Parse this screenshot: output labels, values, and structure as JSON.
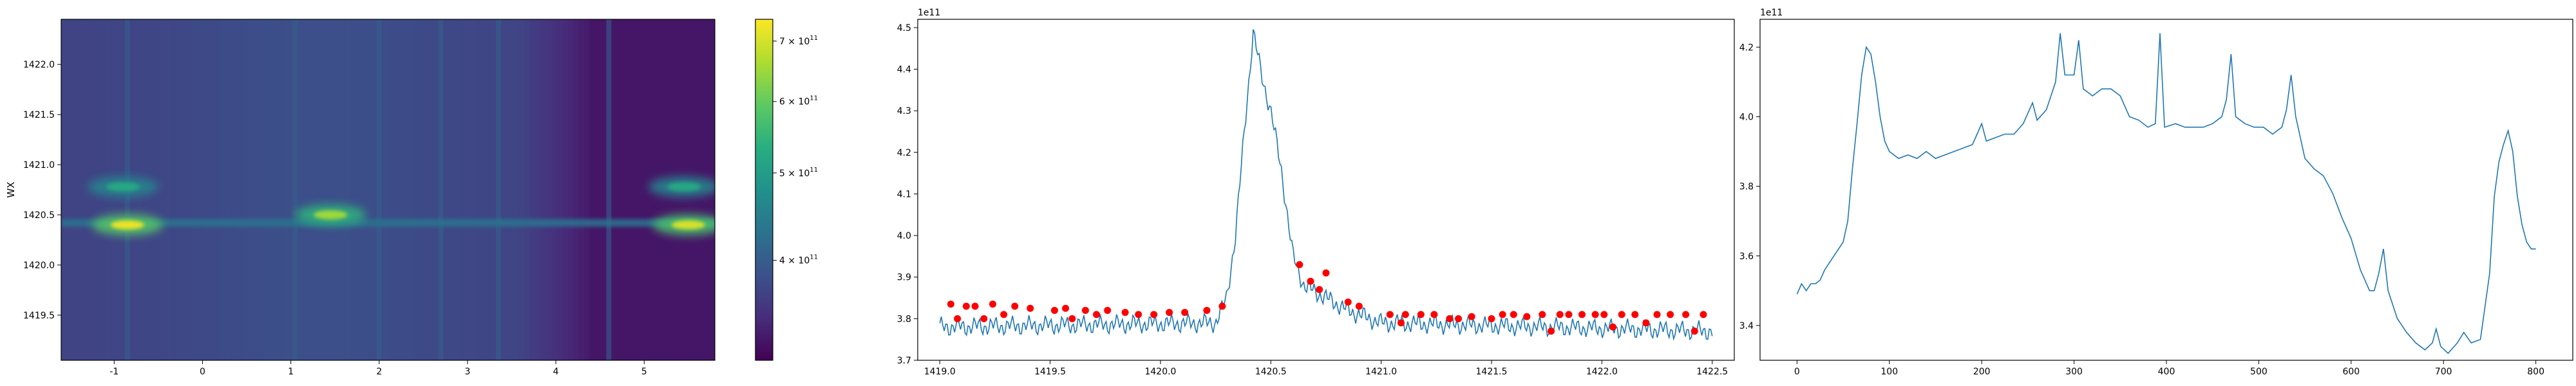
{
  "chart_data": [
    {
      "type": "heatmap",
      "title": "",
      "xlabel": "",
      "ylabel": "WX",
      "xlim": [
        -1.6,
        5.8
      ],
      "ylim": [
        1419.05,
        1422.45
      ],
      "xticks": [
        "-1",
        "0",
        "1",
        "2",
        "3",
        "4",
        "5"
      ],
      "xtick_values": [
        -1,
        0,
        1,
        2,
        3,
        4,
        5
      ],
      "yticks": [
        "1419.5",
        "1420.0",
        "1420.5",
        "1421.0",
        "1421.5",
        "1422.0"
      ],
      "ytick_values": [
        1419.5,
        1420.0,
        1420.5,
        1421.0,
        1421.5,
        1422.0
      ],
      "colormap": "viridis",
      "colorbar": {
        "scale": "log",
        "range": [
          310000000000.0,
          740000000000.0
        ],
        "ticks": [
          {
            "value": 400000000000.0,
            "mantissa": "4",
            "base": "10",
            "exp": "11"
          },
          {
            "value": 500000000000.0,
            "mantissa": "5",
            "base": "10",
            "exp": "11"
          },
          {
            "value": 600000000000.0,
            "mantissa": "6",
            "base": "10",
            "exp": "11"
          },
          {
            "value": 700000000000.0,
            "mantissa": "7",
            "base": "10",
            "exp": "11"
          }
        ]
      },
      "emission_line_center": 1420.42,
      "hot_spots": [
        {
          "x": -0.85,
          "y": 1420.4,
          "value": 720000000000.0
        },
        {
          "x": 1.45,
          "y": 1420.5,
          "value": 650000000000.0
        },
        {
          "x": 5.5,
          "y": 1420.4,
          "value": 700000000000.0
        },
        {
          "x": -0.9,
          "y": 1420.78,
          "value": 520000000000.0
        },
        {
          "x": 5.45,
          "y": 1420.78,
          "value": 520000000000.0
        }
      ],
      "vertical_stripes_x": [
        -0.85,
        1.05,
        2.0,
        2.7,
        3.35,
        4.6
      ]
    },
    {
      "type": "line",
      "title": "",
      "xlabel": "",
      "ylabel": "",
      "offset_text": "1e11",
      "xlim": [
        1418.9,
        1422.6
      ],
      "ylim": [
        3.7,
        4.52
      ],
      "xticks": [
        "1419.0",
        "1419.5",
        "1420.0",
        "1420.5",
        "1421.0",
        "1421.5",
        "1422.0",
        "1422.5"
      ],
      "xtick_values": [
        1419.0,
        1419.5,
        1420.0,
        1420.5,
        1421.0,
        1421.5,
        1422.0,
        1422.5
      ],
      "yticks": [
        "3.7",
        "3.8",
        "3.9",
        "4.0",
        "4.1",
        "4.2",
        "4.3",
        "4.4",
        "4.5"
      ],
      "ytick_values": [
        3.7,
        3.8,
        3.9,
        4.0,
        4.1,
        4.2,
        4.3,
        4.4,
        4.5
      ],
      "series": [
        {
          "line_color": "#1f77b4",
          "x_start": 1419.0,
          "x_end": 1422.5,
          "baseline": 3.78,
          "noise_amplitude": 0.025,
          "peak": {
            "x": 1420.42,
            "y": 4.49
          },
          "profile": [
            [
              1419.0,
              3.78
            ],
            [
              1420.25,
              3.79
            ],
            [
              1420.3,
              3.85
            ],
            [
              1420.34,
              4.0
            ],
            [
              1420.38,
              4.25
            ],
            [
              1420.42,
              4.49
            ],
            [
              1420.46,
              4.38
            ],
            [
              1420.5,
              4.3
            ],
            [
              1420.55,
              4.15
            ],
            [
              1420.6,
              3.95
            ],
            [
              1420.65,
              3.88
            ],
            [
              1420.75,
              3.85
            ],
            [
              1420.85,
              3.82
            ],
            [
              1421.0,
              3.79
            ],
            [
              1422.5,
              3.77
            ]
          ]
        }
      ],
      "markers": {
        "color": "#ff0000",
        "points": [
          [
            1419.05,
            3.835
          ],
          [
            1419.08,
            3.8
          ],
          [
            1419.12,
            3.83
          ],
          [
            1419.16,
            3.83
          ],
          [
            1419.2,
            3.8
          ],
          [
            1419.24,
            3.835
          ],
          [
            1419.29,
            3.81
          ],
          [
            1419.34,
            3.83
          ],
          [
            1419.41,
            3.825
          ],
          [
            1419.52,
            3.82
          ],
          [
            1419.57,
            3.825
          ],
          [
            1419.6,
            3.8
          ],
          [
            1419.66,
            3.82
          ],
          [
            1419.71,
            3.81
          ],
          [
            1419.76,
            3.82
          ],
          [
            1419.84,
            3.815
          ],
          [
            1419.9,
            3.81
          ],
          [
            1419.97,
            3.81
          ],
          [
            1420.04,
            3.815
          ],
          [
            1420.11,
            3.815
          ],
          [
            1420.21,
            3.82
          ],
          [
            1420.28,
            3.83
          ],
          [
            1420.63,
            3.93
          ],
          [
            1420.68,
            3.89
          ],
          [
            1420.72,
            3.87
          ],
          [
            1420.75,
            3.91
          ],
          [
            1420.85,
            3.84
          ],
          [
            1420.9,
            3.83
          ],
          [
            1421.04,
            3.81
          ],
          [
            1421.09,
            3.79
          ],
          [
            1421.11,
            3.81
          ],
          [
            1421.18,
            3.81
          ],
          [
            1421.24,
            3.81
          ],
          [
            1421.31,
            3.8
          ],
          [
            1421.35,
            3.8
          ],
          [
            1421.41,
            3.805
          ],
          [
            1421.5,
            3.8
          ],
          [
            1421.55,
            3.81
          ],
          [
            1421.6,
            3.81
          ],
          [
            1421.66,
            3.805
          ],
          [
            1421.73,
            3.81
          ],
          [
            1421.77,
            3.77
          ],
          [
            1421.81,
            3.81
          ],
          [
            1421.85,
            3.81
          ],
          [
            1421.91,
            3.81
          ],
          [
            1421.97,
            3.81
          ],
          [
            1422.01,
            3.81
          ],
          [
            1422.05,
            3.78
          ],
          [
            1422.09,
            3.81
          ],
          [
            1422.15,
            3.81
          ],
          [
            1422.2,
            3.79
          ],
          [
            1422.25,
            3.81
          ],
          [
            1422.31,
            3.81
          ],
          [
            1422.38,
            3.81
          ],
          [
            1422.42,
            3.77
          ],
          [
            1422.46,
            3.81
          ]
        ]
      }
    },
    {
      "type": "line",
      "title": "",
      "xlabel": "",
      "ylabel": "",
      "offset_text": "1e11",
      "xlim": [
        -40,
        840
      ],
      "ylim": [
        3.3,
        4.28
      ],
      "xticks": [
        "0",
        "100",
        "200",
        "300",
        "400",
        "500",
        "600",
        "700",
        "800"
      ],
      "xtick_values": [
        0,
        100,
        200,
        300,
        400,
        500,
        600,
        700,
        800
      ],
      "yticks": [
        "3.4",
        "3.6",
        "3.8",
        "4.0",
        "4.2"
      ],
      "ytick_values": [
        3.4,
        3.6,
        3.8,
        4.0,
        4.2
      ],
      "series": [
        {
          "line_color": "#1f77b4",
          "points": [
            [
              0,
              3.49
            ],
            [
              5,
              3.52
            ],
            [
              10,
              3.5
            ],
            [
              15,
              3.52
            ],
            [
              20,
              3.52
            ],
            [
              25,
              3.53
            ],
            [
              30,
              3.56
            ],
            [
              40,
              3.6
            ],
            [
              50,
              3.64
            ],
            [
              55,
              3.7
            ],
            [
              60,
              3.85
            ],
            [
              65,
              3.98
            ],
            [
              70,
              4.12
            ],
            [
              75,
              4.2
            ],
            [
              80,
              4.18
            ],
            [
              85,
              4.1
            ],
            [
              90,
              4.0
            ],
            [
              95,
              3.93
            ],
            [
              100,
              3.9
            ],
            [
              110,
              3.88
            ],
            [
              120,
              3.89
            ],
            [
              130,
              3.88
            ],
            [
              140,
              3.9
            ],
            [
              150,
              3.88
            ],
            [
              160,
              3.89
            ],
            [
              170,
              3.9
            ],
            [
              180,
              3.91
            ],
            [
              190,
              3.92
            ],
            [
              195,
              3.95
            ],
            [
              200,
              3.98
            ],
            [
              205,
              3.93
            ],
            [
              215,
              3.94
            ],
            [
              225,
              3.95
            ],
            [
              235,
              3.95
            ],
            [
              245,
              3.98
            ],
            [
              255,
              4.04
            ],
            [
              260,
              3.99
            ],
            [
              270,
              4.02
            ],
            [
              280,
              4.1
            ],
            [
              285,
              4.24
            ],
            [
              290,
              4.12
            ],
            [
              300,
              4.12
            ],
            [
              305,
              4.22
            ],
            [
              310,
              4.08
            ],
            [
              320,
              4.06
            ],
            [
              330,
              4.08
            ],
            [
              340,
              4.08
            ],
            [
              350,
              4.06
            ],
            [
              360,
              4.0
            ],
            [
              370,
              3.99
            ],
            [
              380,
              3.97
            ],
            [
              388,
              3.98
            ],
            [
              393,
              4.24
            ],
            [
              398,
              3.97
            ],
            [
              410,
              3.98
            ],
            [
              420,
              3.97
            ],
            [
              430,
              3.97
            ],
            [
              440,
              3.97
            ],
            [
              450,
              3.98
            ],
            [
              460,
              4.0
            ],
            [
              465,
              4.05
            ],
            [
              470,
              4.18
            ],
            [
              475,
              4.0
            ],
            [
              485,
              3.98
            ],
            [
              495,
              3.97
            ],
            [
              505,
              3.97
            ],
            [
              515,
              3.95
            ],
            [
              525,
              3.97
            ],
            [
              530,
              4.02
            ],
            [
              535,
              4.12
            ],
            [
              540,
              4.0
            ],
            [
              550,
              3.88
            ],
            [
              560,
              3.85
            ],
            [
              570,
              3.83
            ],
            [
              580,
              3.78
            ],
            [
              590,
              3.71
            ],
            [
              600,
              3.65
            ],
            [
              610,
              3.56
            ],
            [
              615,
              3.53
            ],
            [
              620,
              3.5
            ],
            [
              625,
              3.5
            ],
            [
              630,
              3.55
            ],
            [
              635,
              3.62
            ],
            [
              640,
              3.5
            ],
            [
              650,
              3.42
            ],
            [
              660,
              3.38
            ],
            [
              670,
              3.35
            ],
            [
              680,
              3.33
            ],
            [
              688,
              3.35
            ],
            [
              692,
              3.39
            ],
            [
              697,
              3.34
            ],
            [
              705,
              3.32
            ],
            [
              715,
              3.35
            ],
            [
              722,
              3.38
            ],
            [
              730,
              3.35
            ],
            [
              740,
              3.36
            ],
            [
              750,
              3.55
            ],
            [
              755,
              3.77
            ],
            [
              760,
              3.87
            ],
            [
              765,
              3.92
            ],
            [
              770,
              3.96
            ],
            [
              775,
              3.9
            ],
            [
              780,
              3.77
            ],
            [
              785,
              3.69
            ],
            [
              790,
              3.64
            ],
            [
              795,
              3.62
            ],
            [
              800,
              3.62
            ]
          ]
        }
      ]
    }
  ]
}
